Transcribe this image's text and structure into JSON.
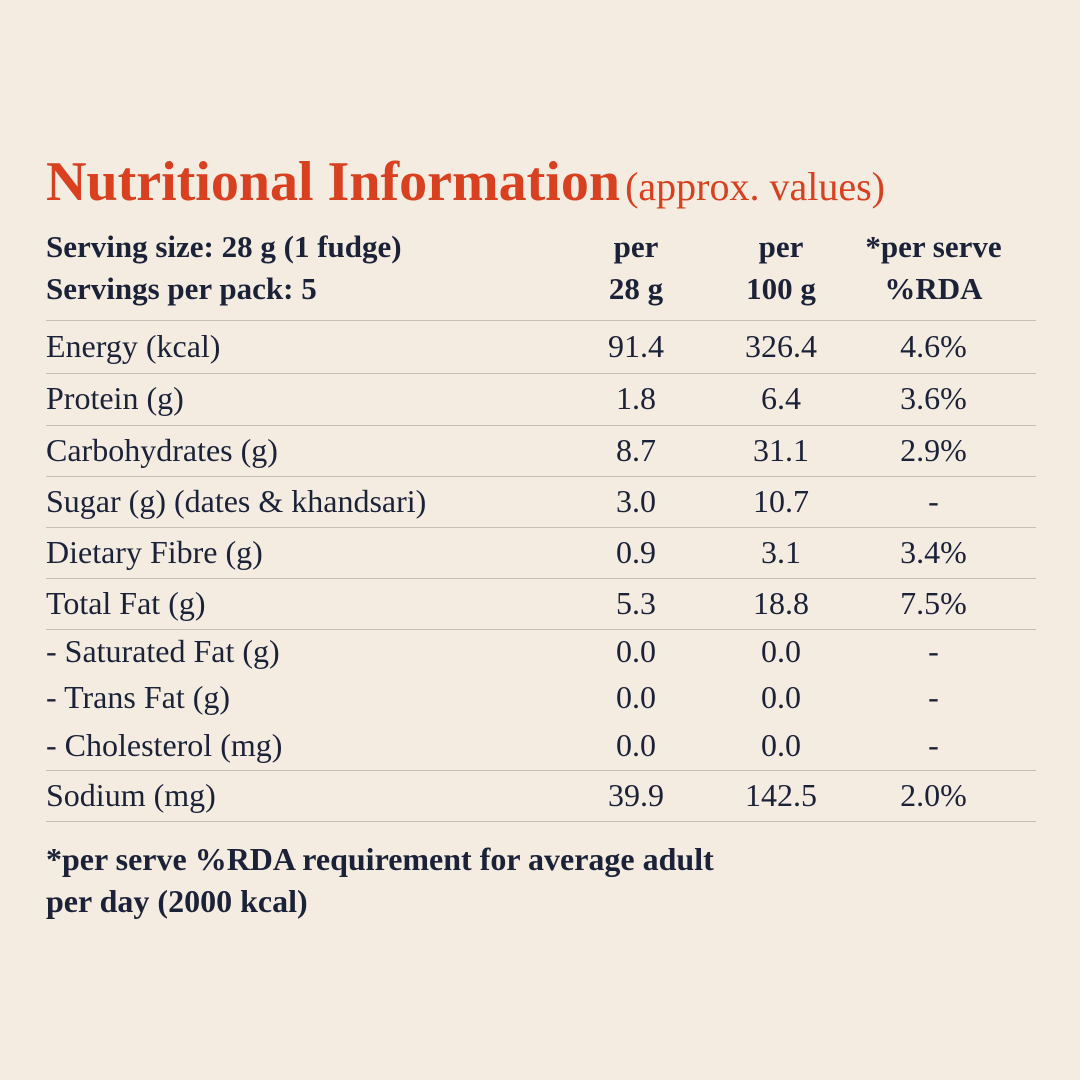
{
  "title": "Nutritional Information",
  "subtitle": "(approx. values)",
  "header": {
    "serving_size": "Serving size: 28 g (1 fudge)",
    "servings_per_pack": "Servings per pack: 5",
    "col1_line1": "per",
    "col1_line2": "28 g",
    "col2_line1": "per",
    "col2_line2": "100 g",
    "col3_line1": "*per serve",
    "col3_line2": "%RDA"
  },
  "rows": [
    {
      "label": "Energy (kcal)",
      "per28": "91.4",
      "per100": "326.4",
      "rda": "4.6%"
    },
    {
      "label": "Protein (g)",
      "per28": "1.8",
      "per100": "6.4",
      "rda": "3.6%"
    },
    {
      "label": "Carbohydrates (g)",
      "per28": "8.7",
      "per100": "31.1",
      "rda": "2.9%"
    },
    {
      "label": "Sugar (g) (dates & khandsari)",
      "per28": "3.0",
      "per100": "10.7",
      "rda": "-"
    },
    {
      "label": "Dietary Fibre (g)",
      "per28": "0.9",
      "per100": "3.1",
      "rda": "3.4%"
    },
    {
      "label": "Total Fat (g)",
      "per28": "5.3",
      "per100": "18.8",
      "rda": "7.5%"
    },
    {
      "label": "- Saturated Fat (g)",
      "per28": "0.0",
      "per100": "0.0",
      "rda": "-"
    },
    {
      "label": "- Trans Fat (g)",
      "per28": "0.0",
      "per100": "0.0",
      "rda": "-"
    },
    {
      "label": "- Cholesterol (mg)",
      "per28": "0.0",
      "per100": "0.0",
      "rda": "-"
    },
    {
      "label": "Sodium (mg)",
      "per28": "39.9",
      "per100": "142.5",
      "rda": "2.0%"
    }
  ],
  "footnote": {
    "line1": "*per serve %RDA requirement for average adult",
    "line2": "per day (2000 kcal)"
  },
  "colors": {
    "accent": "#d8401f",
    "text": "#1b2238",
    "background": "#f4ebe1"
  }
}
